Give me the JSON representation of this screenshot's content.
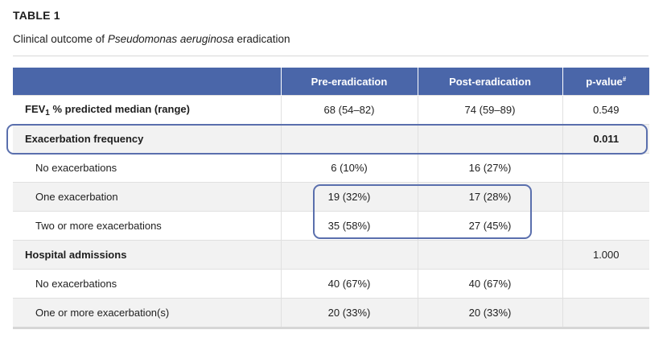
{
  "table_label": "TABLE 1",
  "caption": {
    "prefix": "Clinical outcome of ",
    "organism": "Pseudomonas aeruginosa",
    "suffix": " eradication"
  },
  "columns": {
    "pre": "Pre-eradication",
    "post": "Post-eradication",
    "pvalue": "p-value",
    "pvalue_mark": "#"
  },
  "rows": [
    {
      "label_prefix": "FEV",
      "label_sub": "1",
      "label_suffix": " % predicted median (range)",
      "pre": "68 (54–82)",
      "post": "74 (59–89)",
      "p": "0.549"
    },
    {
      "label": "Exacerbation frequency",
      "pre": "",
      "post": "",
      "p": "0.011"
    },
    {
      "label": "No exacerbations",
      "pre": "6 (10%)",
      "post": "16 (27%)",
      "p": ""
    },
    {
      "label": "One exacerbation",
      "pre": "19 (32%)",
      "post": "17 (28%)",
      "p": ""
    },
    {
      "label": "Two or more exacerbations",
      "pre": "35 (58%)",
      "post": "27 (45%)",
      "p": ""
    },
    {
      "label": "Hospital admissions",
      "pre": "",
      "post": "",
      "p": "1.000"
    },
    {
      "label": "No exacerbations",
      "pre": "40 (67%)",
      "post": "40 (67%)",
      "p": ""
    },
    {
      "label": "One or more exacerbation(s)",
      "pre": "20 (33%)",
      "post": "20 (33%)",
      "p": ""
    }
  ],
  "colors": {
    "header_bg": "#4a66a9",
    "highlight_border": "#5a6fad",
    "shaded_row": "#f2f2f2"
  }
}
